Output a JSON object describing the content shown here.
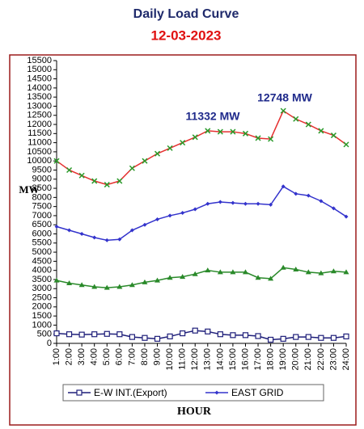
{
  "chart_data": {
    "type": "line",
    "title": "Daily Load Curve",
    "subtitle": "12-03-2023",
    "y_label": "MW",
    "x_label": "HOUR",
    "annotations": [
      "11332 MW",
      "12748 MW"
    ],
    "categories": [
      "1:00",
      "2:00",
      "3:00",
      "4:00",
      "5:00",
      "6:00",
      "7:00",
      "8:00",
      "9:00",
      "10:00",
      "11:00",
      "12:00",
      "13:00",
      "14:00",
      "15:00",
      "16:00",
      "17:00",
      "18:00",
      "19:00",
      "20:00",
      "21:00",
      "22:00",
      "23:00",
      "24:00"
    ],
    "ylim": [
      0,
      15500
    ],
    "yticks": [
      0,
      500,
      1000,
      1500,
      2000,
      2500,
      3000,
      3500,
      4000,
      4500,
      5000,
      5500,
      6000,
      6500,
      7000,
      7500,
      8000,
      8500,
      9000,
      9500,
      10000,
      10500,
      11000,
      11500,
      12000,
      12500,
      13000,
      13500,
      14000,
      14500,
      15000,
      15500
    ],
    "grid": false,
    "series": [
      {
        "color": "#e53030",
        "marker": "x",
        "marker_color": "#2a9a2a",
        "values": [
          10000,
          9500,
          9200,
          8900,
          8700,
          8900,
          9600,
          10000,
          10400,
          10700,
          11000,
          11300,
          11650,
          11600,
          11600,
          11500,
          11250,
          11200,
          12748,
          12300,
          12000,
          11650,
          11400,
          10900
        ]
      },
      {
        "name": "EAST GRID",
        "color": "#3333cc",
        "marker": "diamond",
        "marker_color": "#3333cc",
        "values": [
          6400,
          6200,
          6000,
          5800,
          5650,
          5700,
          6200,
          6500,
          6800,
          7000,
          7150,
          7350,
          7650,
          7750,
          7700,
          7650,
          7650,
          7600,
          8600,
          8200,
          8100,
          7800,
          7400,
          6950
        ]
      },
      {
        "color": "#2a8a2a",
        "marker": "triangle",
        "marker_color": "#2a8a2a",
        "values": [
          3450,
          3300,
          3200,
          3100,
          3050,
          3100,
          3200,
          3350,
          3450,
          3600,
          3650,
          3800,
          4000,
          3900,
          3900,
          3900,
          3600,
          3550,
          4150,
          4050,
          3900,
          3850,
          3950,
          3900
        ]
      },
      {
        "name": "E-W INT.(Export)",
        "color": "#1f1f7a",
        "marker": "square",
        "marker_color": "#1f1f7a",
        "values": [
          550,
          500,
          480,
          500,
          520,
          500,
          350,
          300,
          250,
          380,
          550,
          700,
          650,
          500,
          450,
          450,
          400,
          200,
          250,
          350,
          350,
          300,
          300,
          380
        ]
      }
    ]
  }
}
